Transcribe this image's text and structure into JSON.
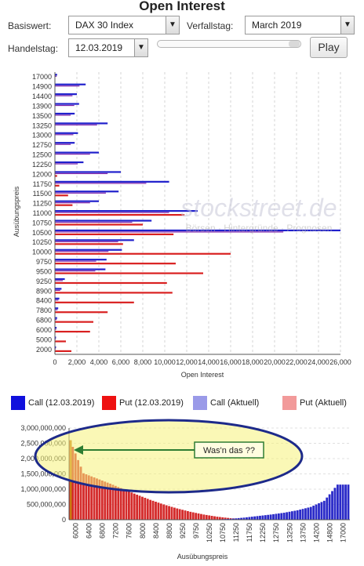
{
  "header": {
    "title": "Open Interest",
    "basiswert_label": "Basiswert:",
    "basiswert_value": "DAX 30 Index",
    "verfallstag_label": "Verfallstag:",
    "verfallstag_value": "March 2019",
    "handelstag_label": "Handelstag:",
    "handelstag_value": "12.03.2019",
    "play_label": "Play",
    "slider_position": 1.0
  },
  "legend": [
    {
      "label": "Call (12.03.2019)",
      "color": "#1010dd"
    },
    {
      "label": "Put (12.03.2019)",
      "color": "#ee1111"
    },
    {
      "label": "Call (Aktuell)",
      "color": "#9a9ae8"
    },
    {
      "label": "Put (Aktuell)",
      "color": "#f29a9a"
    }
  ],
  "watermark": {
    "brand": "stockstreet.de",
    "tagline": "Börsen · Hintergründe · Prognosen"
  },
  "annotation": {
    "text": "Was'n das ??"
  },
  "chart_data": [
    {
      "type": "bar",
      "orientation": "horizontal",
      "xlabel": "Open Interest",
      "ylabel": "Ausübungspreis",
      "xlim": [
        0,
        26000
      ],
      "x_ticks": [
        "0",
        "2,000",
        "4,000",
        "6,000",
        "8,000",
        "10,000",
        "12,000",
        "14,000",
        "16,000",
        "18,000",
        "20,000",
        "22,000",
        "24,000",
        "26,000"
      ],
      "y_ticks": [
        "17000",
        "14900",
        "14400",
        "13900",
        "13500",
        "13250",
        "13000",
        "12750",
        "12500",
        "12250",
        "12000",
        "11750",
        "11500",
        "11250",
        "11000",
        "10750",
        "10500",
        "10250",
        "10000",
        "9750",
        "9500",
        "9250",
        "8900",
        "8400",
        "7800",
        "6800",
        "6000",
        "5000",
        "2000"
      ],
      "grid": true,
      "series": [
        {
          "name": "Call (12.03.2019)",
          "values": [
            200,
            2800,
            2000,
            2200,
            1800,
            4800,
            2100,
            1800,
            4000,
            2600,
            6000,
            10400,
            5800,
            4000,
            13000,
            8800,
            26000,
            7200,
            6100,
            4700,
            4600,
            900,
            600,
            400,
            300,
            200,
            150,
            100,
            100
          ]
        },
        {
          "name": "Put (12.03.2019)",
          "values": [
            0,
            0,
            0,
            0,
            0,
            0,
            0,
            0,
            0,
            0,
            200,
            400,
            1200,
            1600,
            11800,
            8000,
            10800,
            6200,
            16000,
            11000,
            13500,
            10200,
            10700,
            7200,
            4800,
            3500,
            3200,
            1000,
            1500
          ]
        }
      ]
    },
    {
      "type": "bar",
      "xlabel": "Ausübungspreis",
      "ylabel": "",
      "ylim": [
        0,
        3000000000
      ],
      "y_ticks": [
        "0",
        "500,000,000",
        "1,000,000,000",
        "1,500,000,000",
        "2,000,000,000",
        "2,500,000,000",
        "3,000,000,000"
      ],
      "x_ticks": [
        "6000",
        "6400",
        "6800",
        "7200",
        "7600",
        "8000",
        "8400",
        "8800",
        "9250",
        "9750",
        "10250",
        "10750",
        "11250",
        "11750",
        "12250",
        "12750",
        "13250",
        "13750",
        "14200",
        "14800",
        "17000"
      ],
      "series": [
        {
          "name": "Put",
          "values": [
            2600000000,
            1520000000,
            1350000000,
            1180000000,
            1000000000,
            820000000,
            650000000,
            500000000,
            370000000,
            260000000,
            170000000,
            100000000,
            50000000,
            20000000,
            5000000,
            0,
            0,
            0,
            0,
            0,
            0
          ]
        },
        {
          "name": "Call",
          "values": [
            0,
            0,
            0,
            0,
            0,
            0,
            0,
            0,
            0,
            0,
            0,
            10000000,
            30000000,
            70000000,
            120000000,
            170000000,
            230000000,
            310000000,
            420000000,
            620000000,
            1150000000
          ]
        }
      ]
    }
  ]
}
